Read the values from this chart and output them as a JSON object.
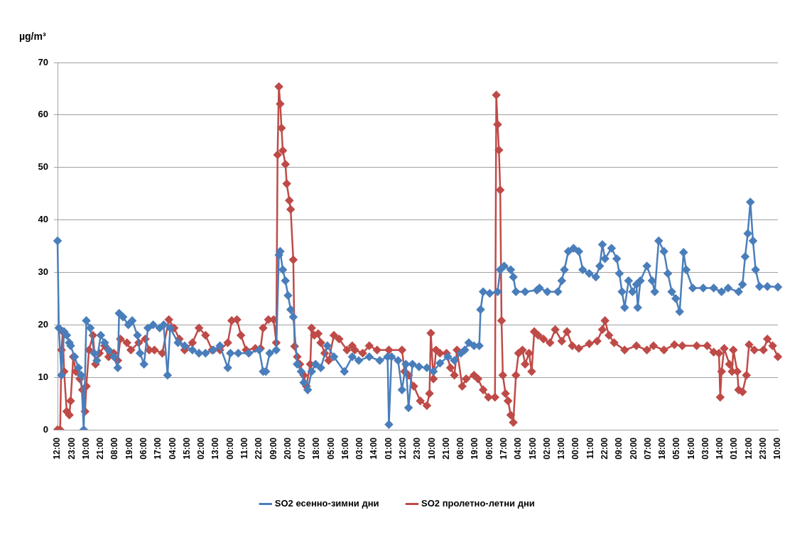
{
  "chart_data": {
    "type": "line",
    "ylabel": "µg/m³",
    "ylim": [
      0,
      70
    ],
    "yticks": [
      0,
      10,
      20,
      30,
      40,
      50,
      60,
      70
    ],
    "categories": [
      "12:00",
      null,
      null,
      null,
      null,
      null,
      null,
      null,
      null,
      null,
      null,
      "23:00",
      null,
      null,
      null,
      null,
      null,
      null,
      null,
      null,
      null,
      null,
      "10:00",
      null,
      null,
      null,
      null,
      null,
      null,
      null,
      null,
      null,
      null,
      "21:00",
      null,
      null,
      null,
      null,
      null,
      null,
      null,
      null,
      null,
      null,
      "08:00",
      null,
      null,
      null,
      null,
      null,
      null,
      null,
      null,
      null,
      null,
      "19:00",
      null,
      null,
      null,
      null,
      null,
      null,
      null,
      null,
      null,
      null,
      "06:00",
      null,
      null,
      null,
      null,
      null,
      null,
      null,
      null,
      null,
      null,
      "17:00",
      null,
      null,
      null,
      null,
      null,
      null,
      null,
      null,
      null,
      null,
      "04:00",
      null,
      null,
      null,
      null,
      null,
      null,
      null,
      null,
      null,
      null,
      "15:00",
      null,
      null,
      null,
      null,
      null,
      null,
      null,
      null,
      null,
      null,
      "02:00",
      null,
      null,
      null,
      null,
      null,
      null,
      null,
      null,
      null,
      null,
      "13:00",
      null,
      null,
      null,
      null,
      null,
      null,
      null,
      null,
      null,
      null,
      "00:00",
      null,
      null,
      null,
      null,
      null,
      null,
      null,
      null,
      null,
      null,
      "11:00",
      null,
      null,
      null,
      null,
      null,
      null,
      null,
      null,
      null,
      null,
      "22:00",
      null,
      null,
      null,
      null,
      null,
      null,
      null,
      null,
      null,
      null,
      "09:00",
      null,
      null,
      null,
      null,
      null,
      null,
      null,
      null,
      null,
      null,
      "20:00",
      null,
      null,
      null,
      null,
      null,
      null,
      null,
      null,
      null,
      null,
      "07:00",
      null,
      null,
      null,
      null,
      null,
      null,
      null,
      null,
      null,
      null,
      "18:00",
      null,
      null,
      null,
      null,
      null,
      null,
      null,
      null,
      null,
      null,
      "05:00",
      null,
      null,
      null,
      null,
      null,
      null,
      null,
      null,
      null,
      null,
      "16:00",
      null,
      null,
      null,
      null,
      null,
      null,
      null,
      null,
      null,
      null,
      "03:00",
      null,
      null,
      null,
      null,
      null,
      null,
      null,
      null,
      null,
      null,
      "14:00",
      null,
      null,
      null,
      null,
      null,
      null,
      null,
      null,
      null,
      null,
      "01:00",
      null,
      null,
      null,
      null,
      null,
      null,
      null,
      null,
      null,
      null,
      "12:00",
      null,
      null,
      null,
      null,
      null,
      null,
      null,
      null,
      null,
      null,
      "23:00",
      null,
      null,
      null,
      null,
      null,
      null,
      null,
      null,
      null,
      null,
      "10:00",
      null,
      null,
      null,
      null,
      null,
      null,
      null,
      null,
      null,
      null,
      "21:00",
      null,
      null,
      null,
      null,
      null,
      null,
      null,
      null,
      null,
      null,
      "08:00",
      null,
      null,
      null,
      null,
      null,
      null,
      null,
      null,
      null,
      null,
      "19:00",
      null,
      null,
      null,
      null,
      null,
      null,
      null,
      null,
      null,
      null,
      "06:00",
      null,
      null,
      null,
      null,
      null,
      null,
      null,
      null,
      null,
      null,
      "17:00",
      null,
      null,
      null,
      null,
      null,
      null,
      null,
      null,
      null,
      null,
      "04:00",
      null,
      null,
      null,
      null,
      null,
      null,
      null,
      null,
      null,
      null,
      "15:00",
      null,
      null,
      null,
      null,
      null,
      null,
      null,
      null,
      null,
      null,
      "02:00",
      null,
      null,
      null,
      null,
      null,
      null,
      null,
      null,
      null,
      null,
      "13:00",
      null,
      null,
      null,
      null,
      null,
      null,
      null,
      null,
      null,
      null,
      "00:00",
      null,
      null,
      null,
      null,
      null,
      null,
      null,
      null,
      null,
      null,
      "11:00",
      null,
      null,
      null,
      null,
      null,
      null,
      null,
      null,
      null,
      null,
      "22:00",
      null,
      null,
      null,
      null,
      null,
      null,
      null,
      null,
      null,
      null,
      "09:00",
      null,
      null,
      null,
      null,
      null,
      null,
      null,
      null,
      null,
      null,
      "20:00",
      null,
      null,
      null,
      null,
      null,
      null,
      null,
      null,
      null,
      null,
      "07:00",
      null,
      null,
      null,
      null,
      null,
      null,
      null,
      null,
      null,
      null,
      "18:00",
      null,
      null,
      null,
      null,
      null,
      null,
      null,
      null,
      null,
      null,
      "05:00",
      null,
      null,
      null,
      null,
      null,
      null,
      null,
      null,
      null,
      null,
      "16:00",
      null,
      null,
      null,
      null,
      null,
      null,
      null,
      null,
      null,
      null,
      "03:00",
      null,
      null,
      null,
      null,
      null,
      null,
      null,
      null,
      null,
      null,
      "14:00",
      null,
      null,
      null,
      null,
      null,
      null,
      null,
      null,
      null,
      null,
      "01:00",
      null,
      null,
      null,
      null,
      null,
      null,
      null,
      null,
      null,
      null,
      "12:00",
      null,
      null,
      null,
      null,
      null,
      null,
      null,
      null,
      null,
      null,
      "23:00",
      null,
      null,
      null,
      null,
      null,
      null,
      null,
      null,
      null,
      null,
      "10:00"
    ],
    "grid": "y",
    "legend": "bottom",
    "marker": "diamond",
    "series": [
      {
        "name": "SO2 есенно-зимни дни",
        "color": "#4a7ebb",
        "values": [
          36,
          19.4,
          null,
          10.4,
          null,
          18.7,
          null,
          18,
          null,
          16.6,
          16,
          null,
          null,
          13.9,
          null,
          null,
          11.8,
          null,
          10.4,
          null,
          0,
          null,
          20.8,
          null,
          null,
          19.4,
          null,
          null,
          14.6,
          null,
          13.2,
          null,
          null,
          18,
          null,
          null,
          16.6,
          null,
          null,
          15.2,
          null,
          null,
          null,
          13.9,
          null,
          null,
          11.8,
          22.2,
          null,
          null,
          21.5,
          null,
          null,
          null,
          20,
          null,
          null,
          20.8,
          null,
          null,
          null,
          18,
          null,
          14.6,
          null,
          null,
          12.5,
          null,
          null,
          19.4,
          null,
          null,
          null,
          20,
          null,
          null,
          null,
          null,
          19.4,
          null,
          null,
          20,
          null,
          null,
          10.4,
          null,
          19.4,
          null,
          null,
          null,
          null,
          null,
          16.6,
          null,
          null,
          null,
          null,
          16,
          null,
          null,
          null,
          null,
          null,
          15.2,
          null,
          null,
          null,
          null,
          14.6,
          null,
          null,
          null,
          null,
          14.6,
          null,
          null,
          null,
          null,
          null,
          15.2,
          null,
          null,
          null,
          null,
          16,
          null,
          null,
          null,
          null,
          null,
          11.8,
          null,
          14.6,
          null,
          null,
          null,
          null,
          null,
          14.6,
          null,
          null,
          null,
          null,
          null,
          null,
          null,
          14.6,
          null,
          null,
          null,
          null,
          null,
          null,
          null,
          15.2,
          null,
          null,
          11.1,
          null,
          11.1,
          null,
          null,
          14.6,
          null,
          null,
          null,
          null,
          15.2,
          null,
          33.3,
          34,
          null,
          30.5,
          null,
          28.4,
          null,
          25.6,
          null,
          22.9,
          null,
          21.5,
          null,
          null,
          12.5,
          null,
          null,
          11.1,
          null,
          9,
          null,
          null,
          7.6,
          null,
          null,
          11.1,
          null,
          null,
          12.5,
          null,
          null,
          null,
          11.8,
          null,
          null,
          null,
          null,
          16,
          null,
          null,
          null,
          null,
          13.9,
          null,
          null,
          null,
          null,
          null,
          null,
          null,
          11.1,
          null,
          null,
          null,
          null,
          null,
          13.9,
          null,
          null,
          null,
          null,
          13.2,
          null,
          null,
          null,
          null,
          null,
          null,
          null,
          13.9,
          null,
          null,
          null,
          null,
          null,
          null,
          null,
          13.2,
          null,
          null,
          null,
          null,
          null,
          13.9,
          1,
          null,
          13.9,
          null,
          null,
          null,
          null,
          13.2,
          null,
          null,
          7.6,
          null,
          null,
          12.5,
          null,
          4.2,
          null,
          null,
          12.5,
          null,
          null,
          null,
          null,
          12,
          null,
          null,
          null,
          null,
          null,
          11.8,
          null,
          null,
          null,
          null,
          11.1,
          null,
          null,
          null,
          null,
          12.7,
          null,
          null,
          null,
          null,
          null,
          13.9,
          null,
          null,
          null,
          null,
          13.2,
          null,
          null,
          null,
          null,
          14.6,
          null,
          null,
          15.2,
          null,
          null,
          16.6,
          null,
          null,
          null,
          16,
          null,
          null,
          null,
          16,
          22.9,
          null,
          26.3,
          null,
          null,
          null,
          null,
          26,
          null,
          null,
          null,
          null,
          null,
          26.3,
          null,
          30.5,
          null,
          null,
          31.2,
          null,
          null,
          null,
          null,
          30.5,
          null,
          29.1,
          null,
          26.3,
          null,
          null,
          null,
          null,
          null,
          null,
          26.3,
          null,
          null,
          null,
          null,
          null,
          null,
          null,
          null,
          26.6,
          null,
          27,
          null,
          null,
          null,
          null,
          null,
          26.3,
          null,
          null,
          null,
          null,
          null,
          null,
          null,
          26.3,
          null,
          null,
          28.4,
          null,
          30.5,
          null,
          null,
          34,
          null,
          null,
          null,
          34.6,
          null,
          null,
          null,
          34,
          null,
          null,
          30.5,
          null,
          null,
          null,
          null,
          29.8,
          null,
          null,
          null,
          null,
          29.1,
          null,
          null,
          31.2,
          null,
          35.3,
          null,
          32.6,
          null,
          null,
          null,
          null,
          34.6,
          null,
          null,
          null,
          32.6,
          null,
          29.8,
          null,
          26.3,
          null,
          23.3,
          null,
          null,
          28.4,
          null,
          null,
          26.3,
          null,
          null,
          27.7,
          23.3,
          null,
          28.4,
          null,
          null,
          null,
          null,
          31.2,
          null,
          null,
          null,
          28.4,
          null,
          26.3,
          null,
          null,
          36,
          null,
          null,
          null,
          34,
          null,
          null,
          29.8,
          null,
          null,
          26.3,
          null,
          null,
          25,
          null,
          null,
          22.5,
          null,
          null,
          33.8,
          null,
          30.5,
          null,
          null,
          null,
          null,
          27,
          null,
          null,
          null,
          null,
          null,
          null,
          null,
          27,
          null,
          null,
          null,
          null,
          null,
          null,
          null,
          27,
          null,
          null,
          null,
          null,
          null,
          26.3,
          null,
          null,
          null,
          null,
          27,
          null,
          null,
          null,
          null,
          null,
          null,
          null,
          26.3,
          null,
          null,
          27.7,
          null,
          33,
          null,
          37.4,
          null,
          43.4,
          null,
          36,
          null,
          30.5,
          null,
          null,
          27.3,
          null,
          null,
          null,
          null,
          null,
          27.3,
          null,
          null,
          null,
          null,
          null,
          null,
          null,
          27.2
        ]
      },
      {
        "name": "SO2 пролетно-летни дни",
        "color": "#be4b48",
        "values": [
          0,
          null,
          0,
          15.2,
          18.7,
          11.1,
          null,
          3.5,
          null,
          2.8,
          5.5,
          null,
          13.9,
          null,
          11.1,
          null,
          null,
          9.7,
          null,
          7.6,
          null,
          3.5,
          8.3,
          null,
          15.2,
          null,
          null,
          18,
          null,
          12.5,
          null,
          null,
          14.6,
          null,
          null,
          null,
          16,
          null,
          null,
          13.9,
          null,
          null,
          null,
          14.6,
          null,
          null,
          13.2,
          null,
          17.3,
          null,
          null,
          null,
          null,
          16.6,
          null,
          null,
          15.2,
          null,
          null,
          null,
          null,
          null,
          16.6,
          null,
          null,
          null,
          null,
          17.3,
          null,
          null,
          15.2,
          null,
          null,
          null,
          15.2,
          null,
          null,
          null,
          null,
          null,
          14.6,
          null,
          null,
          null,
          null,
          21,
          null,
          null,
          null,
          19.4,
          null,
          null,
          null,
          17.3,
          null,
          null,
          null,
          15.2,
          null,
          null,
          null,
          null,
          null,
          16.6,
          null,
          null,
          null,
          null,
          19.4,
          null,
          null,
          null,
          null,
          18,
          null,
          null,
          null,
          null,
          15.2,
          null,
          null,
          null,
          null,
          null,
          15.2,
          null,
          null,
          null,
          null,
          null,
          16.6,
          null,
          null,
          20.8,
          null,
          null,
          null,
          21,
          null,
          null,
          18,
          null,
          null,
          null,
          15.2,
          null,
          null,
          null,
          null,
          null,
          null,
          15.5,
          null,
          null,
          null,
          15.5,
          null,
          19.4,
          null,
          null,
          null,
          21,
          null,
          null,
          null,
          21,
          null,
          16.6,
          52.4,
          65.4,
          62.1,
          57.5,
          53.2,
          null,
          50.6,
          46.9,
          null,
          43.7,
          42,
          null,
          32.4,
          15.9,
          null,
          13.9,
          null,
          12.5,
          null,
          null,
          10.4,
          null,
          8.3,
          null,
          null,
          12.5,
          19.4,
          null,
          18,
          null,
          null,
          18.3,
          null,
          16.6,
          null,
          null,
          14.6,
          null,
          null,
          13.2,
          null,
          null,
          null,
          18,
          null,
          null,
          null,
          17.3,
          null,
          null,
          null,
          null,
          null,
          15.2,
          null,
          null,
          null,
          16,
          null,
          15.2,
          null,
          null,
          null,
          null,
          null,
          14.6,
          null,
          null,
          null,
          null,
          16,
          null,
          null,
          null,
          null,
          null,
          15.2,
          null,
          null,
          null,
          null,
          null,
          null,
          null,
          null,
          15.2,
          null,
          null,
          null,
          null,
          null,
          null,
          null,
          null,
          null,
          15.2,
          null,
          11.1,
          null,
          null,
          10.4,
          null,
          null,
          null,
          8.3,
          null,
          null,
          null,
          null,
          5.5,
          null,
          null,
          null,
          null,
          4.6,
          null,
          6.9,
          18.4,
          null,
          9.7,
          null,
          15.2,
          null,
          null,
          14.6,
          null,
          null,
          null,
          null,
          14.6,
          null,
          null,
          11.8,
          null,
          null,
          10.4,
          null,
          15.2,
          null,
          null,
          null,
          8.3,
          null,
          null,
          9.7,
          null,
          null,
          null,
          null,
          null,
          10.4,
          null,
          null,
          9.7,
          null,
          null,
          null,
          7.6,
          null,
          null,
          null,
          6.2,
          null,
          null,
          null,
          null,
          6.2,
          63.8,
          58.2,
          53.3,
          45.7,
          20.8,
          10.4,
          null,
          6.9,
          null,
          5.5,
          null,
          2.8,
          null,
          1.4,
          null,
          10.4,
          null,
          14.6,
          null,
          null,
          15.2,
          null,
          12.5,
          null,
          null,
          14.6,
          null,
          11.1,
          null,
          18.7,
          null,
          null,
          18,
          null,
          null,
          null,
          17.3,
          null,
          null,
          null,
          null,
          16.6,
          null,
          null,
          null,
          19.1,
          null,
          null,
          null,
          null,
          16.9,
          null,
          null,
          null,
          18.7,
          null,
          null,
          null,
          16,
          null,
          null,
          null,
          null,
          15.5,
          null,
          null,
          null,
          null,
          null,
          null,
          null,
          16.4,
          null,
          null,
          null,
          null,
          null,
          16.9,
          null,
          null,
          null,
          19.1,
          null,
          20.8,
          null,
          null,
          18,
          null,
          null,
          null,
          16.6,
          null,
          null,
          null,
          null,
          null,
          null,
          null,
          15.2,
          null,
          null,
          null,
          null,
          null,
          null,
          null,
          null,
          16,
          null,
          null,
          null,
          null,
          null,
          null,
          null,
          15.2,
          null,
          null,
          null,
          null,
          16,
          null,
          null,
          null,
          null,
          null,
          null,
          null,
          15.2,
          null,
          null,
          null,
          null,
          null,
          null,
          null,
          16.2,
          null,
          null,
          null,
          null,
          null,
          16,
          null,
          null,
          null,
          null,
          null,
          null,
          null,
          null,
          null,
          null,
          16,
          null,
          null,
          null,
          null,
          null,
          null,
          null,
          16,
          null,
          null,
          null,
          null,
          14.8,
          null,
          null,
          null,
          14.6,
          6.2,
          11.1,
          null,
          15.5,
          null,
          null,
          null,
          12.5,
          null,
          11.1,
          15.2,
          null,
          null,
          11.1,
          7.6,
          null,
          null,
          7.2,
          null,
          null,
          10.4,
          null,
          16.2,
          null,
          null,
          null,
          15.2,
          null,
          null,
          null,
          null,
          null,
          null,
          15.2,
          null,
          null,
          17.3,
          null,
          null,
          null,
          16,
          null,
          null,
          null,
          13.9
        ]
      }
    ]
  }
}
